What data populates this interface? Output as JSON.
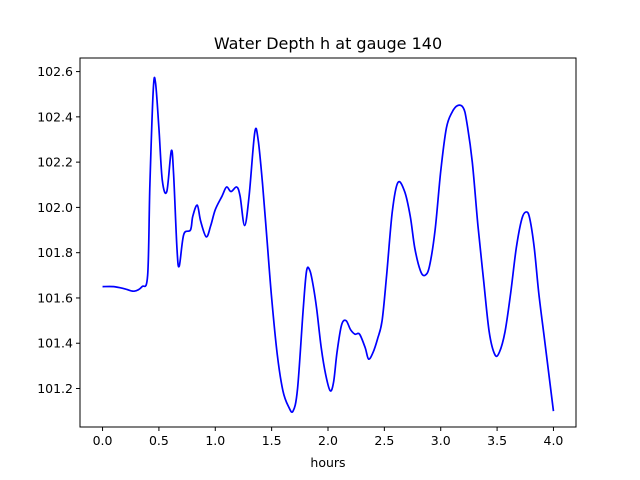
{
  "chart_data": {
    "type": "line",
    "title": "Water Depth h at gauge 140",
    "xlabel": "hours",
    "ylabel": "",
    "xlim": [
      -0.2,
      4.2
    ],
    "ylim": [
      101.03,
      102.66
    ],
    "xticks": [
      0.0,
      0.5,
      1.0,
      1.5,
      2.0,
      2.5,
      3.0,
      3.5,
      4.0
    ],
    "xtick_labels": [
      "0.0",
      "0.5",
      "1.0",
      "1.5",
      "2.0",
      "2.5",
      "3.0",
      "3.5",
      "4.0"
    ],
    "yticks": [
      101.2,
      101.4,
      101.6,
      101.8,
      102.0,
      102.2,
      102.4,
      102.6
    ],
    "ytick_labels": [
      "101.2",
      "101.4",
      "101.6",
      "101.8",
      "102.0",
      "102.2",
      "102.4",
      "102.6"
    ],
    "grid": false,
    "line_color": "#0000ff",
    "series": [
      {
        "x": [
          0.0,
          0.1,
          0.2,
          0.28,
          0.35,
          0.4,
          0.42,
          0.45,
          0.47,
          0.5,
          0.53,
          0.57,
          0.61,
          0.63,
          0.66,
          0.68,
          0.72,
          0.78,
          0.8,
          0.84,
          0.87,
          0.92,
          0.96,
          1.0,
          1.06,
          1.1,
          1.14,
          1.19,
          1.22,
          1.26,
          1.3,
          1.35,
          1.38,
          1.42,
          1.46,
          1.5,
          1.55,
          1.6,
          1.65,
          1.69,
          1.73,
          1.78,
          1.81,
          1.84,
          1.87,
          1.9,
          1.94,
          1.98,
          2.02,
          2.05,
          2.08,
          2.12,
          2.16,
          2.2,
          2.24,
          2.28,
          2.33,
          2.36,
          2.4,
          2.44,
          2.48,
          2.52,
          2.57,
          2.62,
          2.68,
          2.73,
          2.77,
          2.82,
          2.86,
          2.9,
          2.95,
          3.0,
          3.05,
          3.1,
          3.15,
          3.2,
          3.23,
          3.28,
          3.33,
          3.38,
          3.43,
          3.48,
          3.52,
          3.57,
          3.62,
          3.67,
          3.72,
          3.76,
          3.79,
          3.83,
          3.87,
          3.92,
          3.97,
          4.0
        ],
        "y": [
          101.65,
          101.65,
          101.64,
          101.63,
          101.65,
          101.7,
          102.1,
          102.52,
          102.55,
          102.35,
          102.12,
          102.07,
          102.25,
          102.15,
          101.82,
          101.74,
          101.88,
          101.9,
          101.96,
          102.01,
          101.94,
          101.87,
          101.92,
          101.99,
          102.05,
          102.09,
          102.07,
          102.09,
          102.05,
          101.92,
          102.05,
          102.33,
          102.3,
          102.1,
          101.85,
          101.6,
          101.35,
          101.19,
          101.12,
          101.1,
          101.2,
          101.55,
          101.72,
          101.72,
          101.65,
          101.55,
          101.38,
          101.26,
          101.19,
          101.23,
          101.36,
          101.48,
          101.5,
          101.46,
          101.44,
          101.44,
          101.38,
          101.33,
          101.36,
          101.42,
          101.5,
          101.7,
          101.98,
          102.11,
          102.07,
          101.96,
          101.82,
          101.72,
          101.7,
          101.74,
          101.9,
          102.16,
          102.35,
          102.42,
          102.45,
          102.44,
          102.38,
          102.2,
          101.92,
          101.68,
          101.45,
          101.35,
          101.36,
          101.45,
          101.62,
          101.82,
          101.95,
          101.98,
          101.95,
          101.82,
          101.62,
          101.42,
          101.22,
          101.1
        ]
      }
    ]
  }
}
